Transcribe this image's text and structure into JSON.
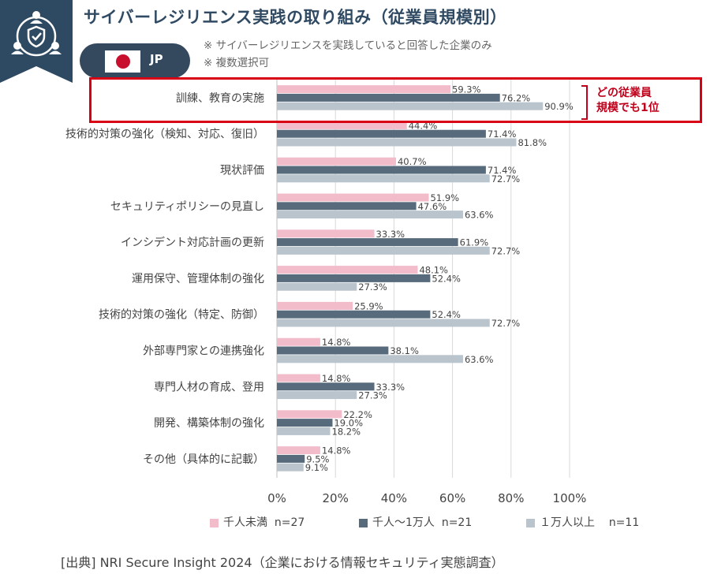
{
  "header": {
    "title": "サイバーレジリエンス実践の取り組み（従業員規模別）",
    "country_label": "JP",
    "notes": [
      "※ サイバーレジリエンスを実践していると回答した企業のみ",
      "※ 複数選択可"
    ]
  },
  "callout": {
    "line1": "どの従業員",
    "line2": "規模でも1位"
  },
  "legend": {
    "items": [
      {
        "label": "千人未満",
        "n": "n=27"
      },
      {
        "label": "千人～1万人",
        "n": "n=21"
      },
      {
        "label": "１万人以上",
        "n": "n=11"
      }
    ]
  },
  "source": "[出典] NRI Secure Insight 2024（企業における情報セキュリティ実態調査）",
  "chart_data": {
    "type": "bar",
    "orientation": "horizontal",
    "categories": [
      "訓練、教育の実施",
      "技術的対策の強化（検知、対応、復旧）",
      "現状評価",
      "セキュリティポリシーの見直し",
      "インシデント対応計画の更新",
      "運用保守、管理体制の強化",
      "技術的対策の強化（特定、防御）",
      "外部専門家との連携強化",
      "専門人材の育成、登用",
      "開発、構築体制の強化",
      "その他（具体的に記載）"
    ],
    "series": [
      {
        "name": "千人未満",
        "color": "#f2bccb",
        "values": [
          59.3,
          44.4,
          40.7,
          51.9,
          33.3,
          48.1,
          25.9,
          14.8,
          14.8,
          22.2,
          14.8
        ]
      },
      {
        "name": "千人～1万人",
        "color": "#586b7d",
        "values": [
          76.2,
          71.4,
          71.4,
          47.6,
          61.9,
          52.4,
          52.4,
          38.1,
          33.3,
          19.0,
          9.5
        ]
      },
      {
        "name": "１万人以上",
        "color": "#b9c4cd",
        "values": [
          90.9,
          81.8,
          72.7,
          63.6,
          72.7,
          27.3,
          72.7,
          63.6,
          27.3,
          18.2,
          9.1
        ]
      }
    ],
    "xlim": [
      0,
      100
    ],
    "xticks": [
      "0%",
      "20%",
      "40%",
      "60%",
      "80%",
      "100%"
    ],
    "grid": true,
    "legend_position": "bottom"
  }
}
